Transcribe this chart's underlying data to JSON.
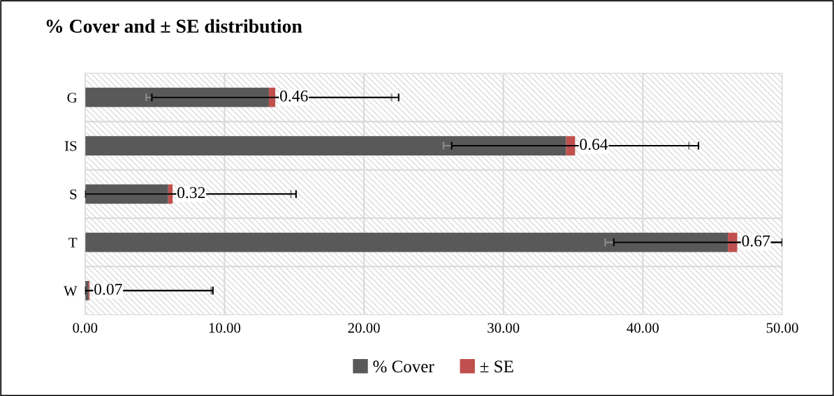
{
  "chart_data": {
    "type": "bar",
    "orientation": "horizontal",
    "stacked": true,
    "title": "% Cover and ± SE distribution",
    "categories": [
      "G",
      "IS",
      "S",
      "T",
      "W"
    ],
    "series": [
      {
        "name": "% Cover",
        "color": "#595959",
        "values": [
          13.18,
          34.5,
          5.96,
          46.1,
          0.25
        ],
        "errors": [
          8.8,
          8.8,
          [
            0,
            14.76
          ],
          [
            37.3,
            50
          ],
          [
            0,
            9.05
          ]
        ]
      },
      {
        "name": "± SE",
        "color": "#c0504d",
        "values": [
          0.46,
          0.64,
          0.32,
          0.67,
          0.07
        ],
        "errors": [
          8.85,
          8.85,
          [
            0,
            15.13
          ],
          [
            37.92,
            50
          ],
          [
            0,
            9.17
          ]
        ],
        "value_labels": [
          "0.46",
          "0.64",
          "0.32",
          "0.67",
          "0.07"
        ]
      }
    ],
    "xlim": [
      0,
      50
    ],
    "xticks": [
      {
        "value": 0,
        "label": "0.00"
      },
      {
        "value": 10,
        "label": "10.00"
      },
      {
        "value": 20,
        "label": "20.00"
      },
      {
        "value": 30,
        "label": "30.00"
      },
      {
        "value": 40,
        "label": "40.00"
      },
      {
        "value": 50,
        "label": "50.00"
      }
    ],
    "grid": true,
    "legend": "bottom"
  }
}
